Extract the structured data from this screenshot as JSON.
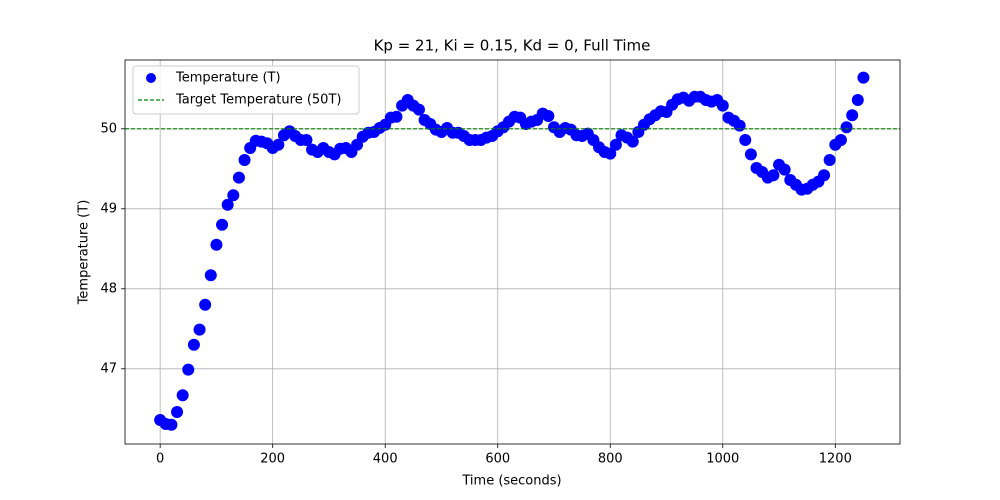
{
  "chart_data": {
    "type": "scatter",
    "title": "Kp = 21, Ki = 0.15, Kd = 0, Full Time",
    "x_label": "Time (seconds)",
    "y_label": "Temperature (T)",
    "x": [
      0,
      10,
      20,
      30,
      40,
      50,
      60,
      70,
      80,
      90,
      100,
      110,
      120,
      130,
      140,
      150,
      160,
      170,
      180,
      190,
      200,
      210,
      220,
      230,
      240,
      250,
      260,
      270,
      280,
      290,
      300,
      310,
      320,
      330,
      340,
      350,
      360,
      370,
      380,
      390,
      400,
      410,
      420,
      430,
      440,
      450,
      460,
      470,
      480,
      490,
      500,
      510,
      520,
      530,
      540,
      550,
      560,
      570,
      580,
      590,
      600,
      610,
      620,
      630,
      640,
      650,
      660,
      670,
      680,
      690,
      700,
      710,
      720,
      730,
      740,
      750,
      760,
      770,
      780,
      790,
      800,
      810,
      820,
      830,
      840,
      850,
      860,
      870,
      880,
      890,
      900,
      910,
      920,
      930,
      940,
      950,
      960,
      970,
      980,
      990,
      1000,
      1010,
      1020,
      1030,
      1040,
      1050,
      1060,
      1070,
      1080,
      1090,
      1100,
      1110,
      1120,
      1130,
      1140,
      1150,
      1160,
      1170,
      1180,
      1190,
      1200,
      1210,
      1220,
      1230,
      1240,
      1250
    ],
    "series": [
      {
        "name": "Temperature (T)",
        "color": "#0000ff",
        "values": [
          46.36,
          46.31,
          46.3,
          46.46,
          46.67,
          46.99,
          47.3,
          47.49,
          47.8,
          48.17,
          48.55,
          48.8,
          49.05,
          49.17,
          49.39,
          49.61,
          49.76,
          49.85,
          49.84,
          49.82,
          49.76,
          49.8,
          49.92,
          49.97,
          49.91,
          49.86,
          49.86,
          49.74,
          49.71,
          49.76,
          49.71,
          49.68,
          49.75,
          49.76,
          49.71,
          49.8,
          49.9,
          49.95,
          49.96,
          50.01,
          50.05,
          50.14,
          50.15,
          50.29,
          50.36,
          50.29,
          50.24,
          50.11,
          50.06,
          49.99,
          49.96,
          50.01,
          49.95,
          49.95,
          49.91,
          49.86,
          49.86,
          49.86,
          49.89,
          49.91,
          49.97,
          50.02,
          50.09,
          50.15,
          50.14,
          50.06,
          50.09,
          50.11,
          50.19,
          50.16,
          50.02,
          49.96,
          50.01,
          49.99,
          49.92,
          49.91,
          49.94,
          49.86,
          49.77,
          49.71,
          49.69,
          49.8,
          49.92,
          49.89,
          49.84,
          49.96,
          50.05,
          50.12,
          50.17,
          50.22,
          50.21,
          50.3,
          50.37,
          50.39,
          50.35,
          50.4,
          50.4,
          50.36,
          50.34,
          50.36,
          50.29,
          50.14,
          50.1,
          50.04,
          49.86,
          49.68,
          49.51,
          49.46,
          49.39,
          49.42,
          49.55,
          49.49,
          49.36,
          49.3,
          49.24,
          49.25,
          49.3,
          49.34,
          49.42,
          49.61,
          49.8,
          49.86,
          50.02,
          50.17,
          50.36,
          50.64
        ]
      }
    ],
    "reference_line": {
      "name": "Target Temperature (50T)",
      "value": 50,
      "color": "#008000"
    },
    "xlim": [
      -62.5,
      1315
    ],
    "ylim": [
      46.06,
      50.86
    ],
    "xticks": [
      0,
      200,
      400,
      600,
      800,
      1000,
      1200
    ],
    "yticks": [
      47,
      48,
      49,
      50
    ],
    "grid": true,
    "legend": "upper left"
  }
}
